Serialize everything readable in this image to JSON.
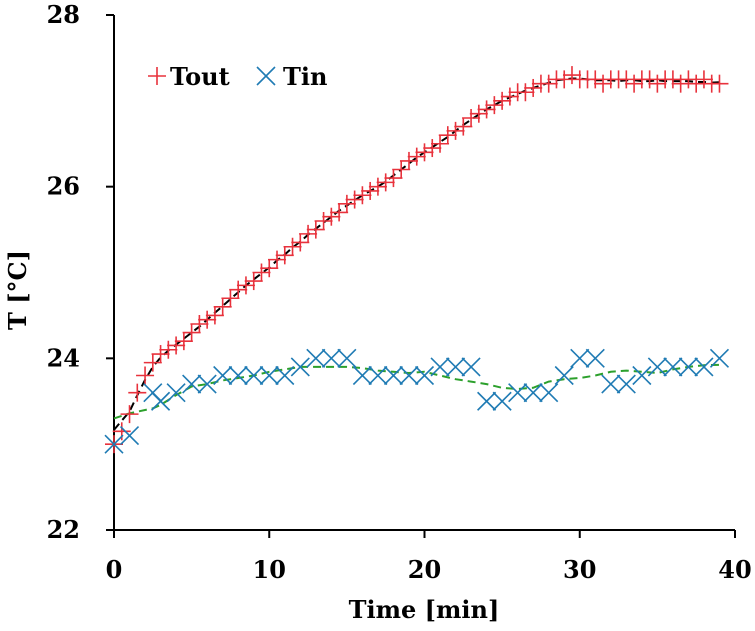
{
  "chart_data": {
    "type": "scatter",
    "xlabel": "Time [min]",
    "ylabel": "T [°C]",
    "xlim": [
      0,
      40
    ],
    "ylim": [
      22,
      28
    ],
    "xticks": [
      0,
      10,
      20,
      30,
      40
    ],
    "yticks": [
      22,
      24,
      26,
      28
    ],
    "grid": false,
    "legend_position": "top-left",
    "series": [
      {
        "name": "Tout",
        "marker": "plus",
        "color": "#e8323c",
        "trend_color": "#000000",
        "x": [
          0,
          0.5,
          1,
          1.5,
          2,
          2.5,
          3,
          3.5,
          4,
          4.5,
          5,
          5.5,
          6,
          6.5,
          7,
          7.5,
          8,
          8.5,
          9,
          9.5,
          10,
          10.5,
          11,
          11.5,
          12,
          12.5,
          13,
          13.5,
          14,
          14.5,
          15,
          15.5,
          16,
          16.5,
          17,
          17.5,
          18,
          18.5,
          19,
          19.5,
          20,
          20.5,
          21,
          21.5,
          22,
          22.5,
          23,
          23.5,
          24,
          24.5,
          25,
          25.5,
          26,
          26.5,
          27,
          27.5,
          28,
          28.5,
          29,
          29.5,
          30,
          30.5,
          31,
          31.5,
          32,
          32.5,
          33,
          33.5,
          34,
          34.5,
          35,
          35.5,
          36,
          36.5,
          37,
          37.5,
          38,
          38.5,
          39
        ],
        "y": [
          23.0,
          23.15,
          23.35,
          23.6,
          23.8,
          23.95,
          24.05,
          24.1,
          24.15,
          24.2,
          24.3,
          24.4,
          24.45,
          24.5,
          24.6,
          24.7,
          24.8,
          24.85,
          24.9,
          25.0,
          25.05,
          25.15,
          25.2,
          25.3,
          25.35,
          25.45,
          25.5,
          25.6,
          25.65,
          25.7,
          25.8,
          25.85,
          25.9,
          25.95,
          26.0,
          26.05,
          26.1,
          26.2,
          26.3,
          26.35,
          26.4,
          26.45,
          26.5,
          26.6,
          26.65,
          26.7,
          26.8,
          26.85,
          26.9,
          26.95,
          27.0,
          27.05,
          27.1,
          27.1,
          27.15,
          27.2,
          27.2,
          27.25,
          27.25,
          27.3,
          27.25,
          27.25,
          27.25,
          27.2,
          27.25,
          27.25,
          27.25,
          27.2,
          27.25,
          27.25,
          27.2,
          27.25,
          27.25,
          27.2,
          27.25,
          27.2,
          27.25,
          27.2,
          27.2
        ]
      },
      {
        "name": "Tin",
        "marker": "cross",
        "color": "#1f7bb4",
        "trend_color": "#2ca02c",
        "x": [
          0,
          1,
          2.5,
          3,
          4,
          5,
          6,
          7,
          8,
          9,
          10,
          11,
          12,
          13,
          14,
          15,
          16,
          17,
          18,
          19,
          20,
          21,
          22,
          23,
          24,
          25,
          26,
          27,
          28,
          29,
          30,
          31,
          32,
          33,
          34,
          35,
          36,
          37,
          38,
          39
        ],
        "y": [
          23.0,
          23.1,
          23.6,
          23.5,
          23.6,
          23.7,
          23.7,
          23.8,
          23.8,
          23.8,
          23.8,
          23.8,
          23.9,
          24.0,
          24.0,
          24.0,
          23.8,
          23.8,
          23.8,
          23.8,
          23.8,
          23.9,
          23.9,
          23.9,
          23.5,
          23.5,
          23.6,
          23.6,
          23.6,
          23.8,
          24.0,
          24.0,
          23.7,
          23.7,
          23.8,
          23.9,
          23.9,
          23.9,
          23.9,
          24.0
        ]
      }
    ]
  }
}
